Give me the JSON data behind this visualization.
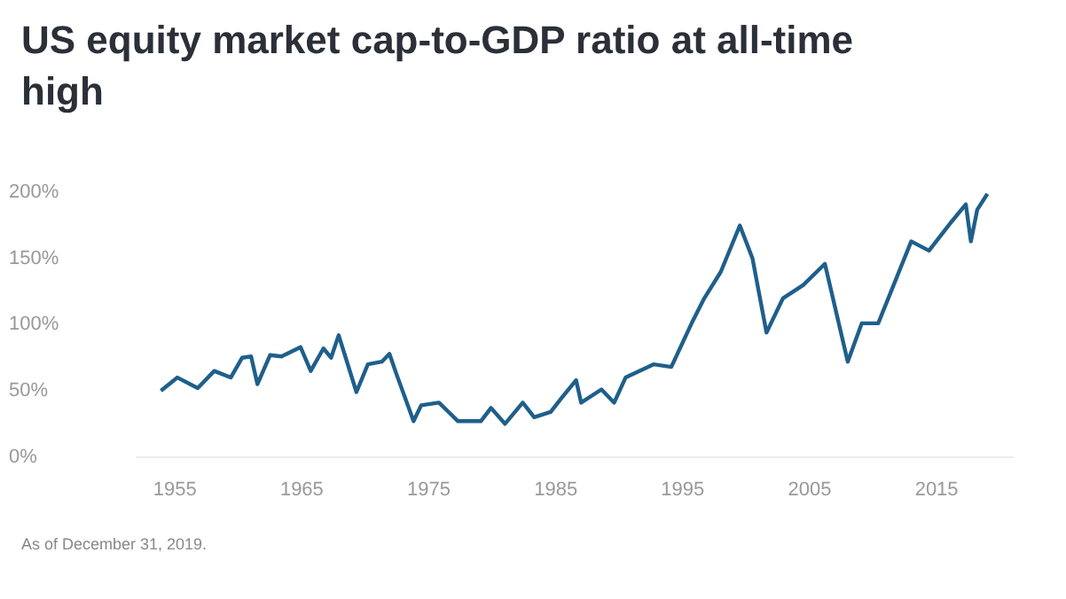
{
  "chart_data": {
    "type": "line",
    "title": "US equity market cap-to-GDP ratio at all-time high",
    "x": [
      1953.9,
      1955.2,
      1956.8,
      1958.1,
      1959.4,
      1960.3,
      1961,
      1961.5,
      1962.5,
      1963.4,
      1964.9,
      1965.7,
      1966.7,
      1967.3,
      1967.9,
      1969.3,
      1970.2,
      1971.3,
      1971.9,
      1972.4,
      1973.8,
      1974.4,
      1975.8,
      1977.3,
      1979.1,
      1979.9,
      1981,
      1982.4,
      1983.3,
      1984.6,
      1985.5,
      1986.6,
      1987,
      1988.6,
      1989.6,
      1990.5,
      1992.7,
      1994.1,
      1995.8,
      1996.7,
      1998,
      1999.5,
      2000.5,
      2001.6,
      2002.9,
      2004.5,
      2006.2,
      2008,
      2009.1,
      2010.4,
      2011.7,
      2013,
      2014.4,
      2016.1,
      2017.3,
      2017.7,
      2018.2,
      2019
    ],
    "series": [
      {
        "color": "#1f5f8b",
        "values": [
          50,
          60,
          52,
          65,
          60,
          75,
          76,
          55,
          77,
          76,
          83,
          65,
          82,
          75,
          92,
          49,
          70,
          72,
          78,
          64,
          27,
          39,
          41,
          27,
          27,
          37,
          25,
          41,
          30,
          34,
          45,
          58,
          41,
          51,
          41,
          60,
          70,
          68,
          103,
          120,
          140,
          175,
          150,
          94,
          120,
          130,
          146,
          72,
          101,
          101,
          132,
          163,
          156,
          177,
          191,
          163,
          187,
          199
        ]
      }
    ],
    "xlim": [
      1952,
      2021
    ],
    "xticks": [
      1955,
      1965,
      1975,
      1985,
      1995,
      2005,
      2015
    ],
    "ylim": [
      0,
      200
    ],
    "yticks": [
      {
        "value": 0,
        "label": "0%"
      },
      {
        "value": 50,
        "label": "50%"
      },
      {
        "value": 100,
        "label": "100%"
      },
      {
        "value": 150,
        "label": "150%"
      },
      {
        "value": 200,
        "label": "200%"
      }
    ],
    "grid": false,
    "legend": false,
    "marker": "none",
    "line_style": "solid",
    "annotations": [
      "As of December 31, 2019."
    ]
  }
}
